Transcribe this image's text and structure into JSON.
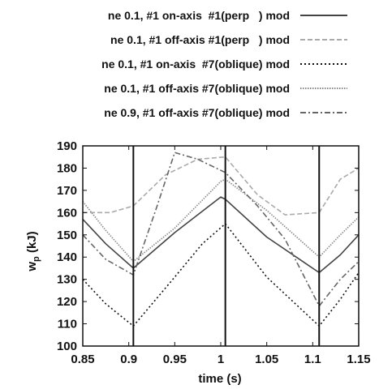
{
  "chart_data": {
    "type": "line",
    "xlabel": "time (s)",
    "ylabel_main": "w",
    "ylabel_sub": "p",
    "ylabel_unit": " (kJ)",
    "xlim": [
      0.85,
      1.15
    ],
    "ylim": [
      100,
      190
    ],
    "xticks": [
      "0.85",
      "0.9",
      "0.95",
      "1",
      "1.05",
      "1.1",
      "1.15"
    ],
    "xtick_values": [
      0.85,
      0.9,
      0.95,
      1.0,
      1.05,
      1.1,
      1.15
    ],
    "yticks": [
      "100",
      "110",
      "120",
      "130",
      "140",
      "150",
      "160",
      "170",
      "180",
      "190"
    ],
    "ytick_values": [
      100,
      110,
      120,
      130,
      140,
      150,
      160,
      170,
      180,
      190
    ],
    "vlines": [
      0.905,
      1.005,
      1.107
    ],
    "legend_position": "top",
    "series": [
      {
        "name": "ne 0.1, #1 on-axis  #1(perp   ) mod",
        "color": "#444444",
        "dash": "solid",
        "x": [
          0.85,
          0.875,
          0.905,
          0.95,
          1.0,
          1.005,
          1.05,
          1.107,
          1.13,
          1.15
        ],
        "y": [
          157,
          146,
          135,
          151,
          167,
          166,
          149,
          133,
          141,
          150
        ]
      },
      {
        "name": "ne 0.1, #1 off-axis #1(perp   ) mod",
        "color": "#aaaaaa",
        "dash": "dashed",
        "x": [
          0.85,
          0.88,
          0.905,
          0.94,
          0.975,
          1.005,
          1.04,
          1.07,
          1.107,
          1.13,
          1.15
        ],
        "y": [
          160,
          160,
          163,
          177,
          184,
          185,
          168,
          159,
          160,
          175,
          180
        ]
      },
      {
        "name": "ne 0.1, #1 on-axis  #7(oblique) mod",
        "color": "#111111",
        "dash": "dotted",
        "x": [
          0.85,
          0.875,
          0.905,
          0.95,
          0.98,
          1.005,
          1.05,
          1.107,
          1.13,
          1.15
        ],
        "y": [
          130,
          119,
          109,
          131,
          146,
          155,
          131,
          109,
          121,
          133
        ]
      },
      {
        "name": "ne 0.1, #1 off-axis #7(oblique) mod",
        "color": "#888888",
        "dash": "dense-dotted",
        "x": [
          0.85,
          0.875,
          0.905,
          0.95,
          1.0,
          1.005,
          1.05,
          1.107,
          1.13,
          1.15
        ],
        "y": [
          165,
          152,
          138,
          153,
          174,
          175,
          161,
          140,
          150,
          158
        ]
      },
      {
        "name": "ne 0.9, #1 off-axis #7(oblique) mod",
        "color": "#666666",
        "dash": "dash-dot",
        "x": [
          0.85,
          0.875,
          0.905,
          0.93,
          0.95,
          0.975,
          1.005,
          1.04,
          1.07,
          1.107,
          1.13,
          1.15
        ],
        "y": [
          150,
          139,
          132,
          162,
          187,
          184,
          178,
          163,
          148,
          118,
          130,
          138
        ]
      }
    ]
  }
}
